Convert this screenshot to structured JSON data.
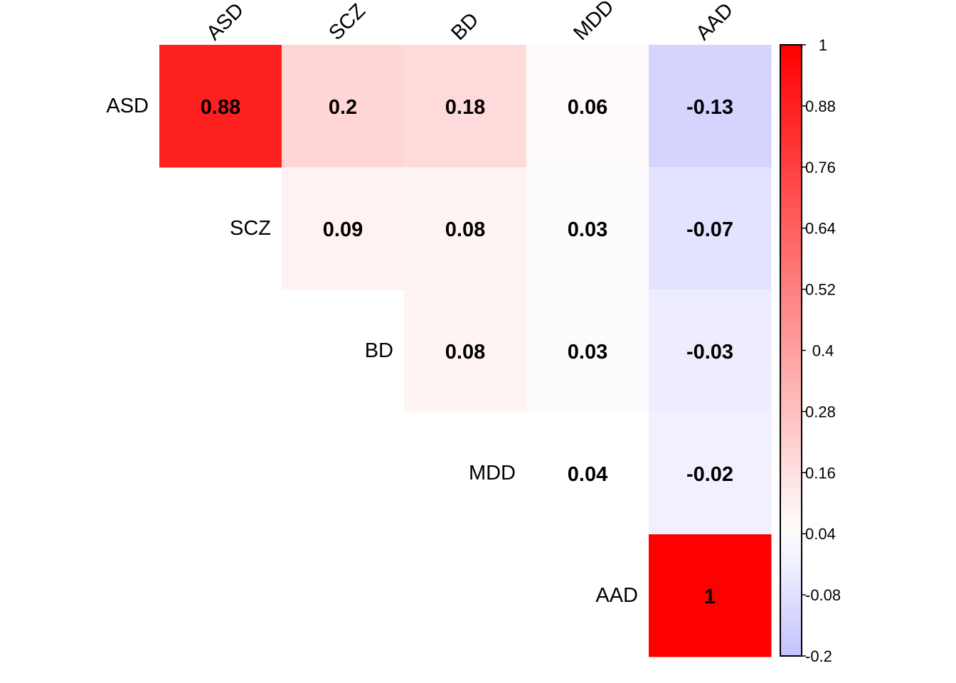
{
  "chart_data": {
    "type": "heatmap",
    "title": "",
    "variables": [
      "ASD",
      "SCZ",
      "BD",
      "MDD",
      "AAD"
    ],
    "layout": "upper-triangle",
    "cells": [
      {
        "row": "ASD",
        "col": "ASD",
        "value": 0.88,
        "label": "0.88"
      },
      {
        "row": "ASD",
        "col": "SCZ",
        "value": 0.2,
        "label": "0.2"
      },
      {
        "row": "ASD",
        "col": "BD",
        "value": 0.18,
        "label": "0.18"
      },
      {
        "row": "ASD",
        "col": "MDD",
        "value": 0.06,
        "label": "0.06"
      },
      {
        "row": "ASD",
        "col": "AAD",
        "value": -0.13,
        "label": "-0.13"
      },
      {
        "row": "SCZ",
        "col": "SCZ",
        "value": 0.09,
        "label": "0.09"
      },
      {
        "row": "SCZ",
        "col": "BD",
        "value": 0.08,
        "label": "0.08"
      },
      {
        "row": "SCZ",
        "col": "MDD",
        "value": 0.03,
        "label": "0.03"
      },
      {
        "row": "SCZ",
        "col": "AAD",
        "value": -0.07,
        "label": "-0.07"
      },
      {
        "row": "BD",
        "col": "BD",
        "value": 0.08,
        "label": "0.08"
      },
      {
        "row": "BD",
        "col": "MDD",
        "value": 0.03,
        "label": "0.03"
      },
      {
        "row": "BD",
        "col": "AAD",
        "value": -0.03,
        "label": "-0.03"
      },
      {
        "row": "MDD",
        "col": "MDD",
        "value": 0.04,
        "label": "0.04"
      },
      {
        "row": "MDD",
        "col": "AAD",
        "value": -0.02,
        "label": "-0.02"
      },
      {
        "row": "AAD",
        "col": "AAD",
        "value": 1,
        "label": "1"
      }
    ],
    "colorbar": {
      "range": [
        -0.2,
        1
      ],
      "ticks": [
        1,
        0.88,
        0.76,
        0.64,
        0.52,
        0.4,
        0.28,
        0.16,
        0.04,
        -0.08,
        -0.2
      ],
      "tick_labels": [
        "1",
        "0.88",
        "0.76",
        "0.64",
        "0.52",
        "0.4",
        "0.28",
        "0.16",
        "0.04",
        "-0.08",
        "-0.2"
      ],
      "colors": {
        "low": "#C2C2FF",
        "mid": "#FFFFFF",
        "high": "#FF0000"
      },
      "mid_value": 0.04
    },
    "legend": "right"
  }
}
